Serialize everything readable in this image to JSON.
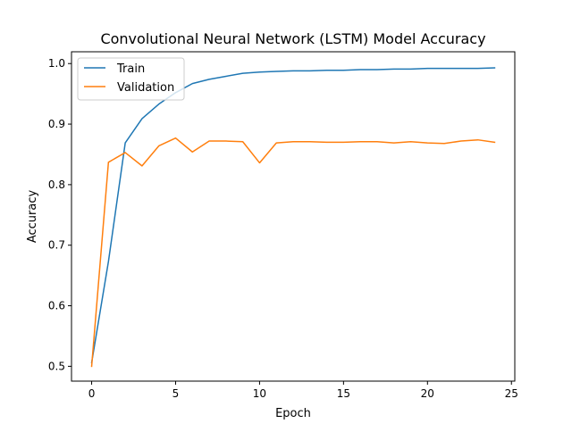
{
  "chart_data": {
    "type": "line",
    "title": "Convolutional Neural Network (LSTM) Model Accuracy",
    "xlabel": "Epoch",
    "ylabel": "Accuracy",
    "xlim": [
      -1.2,
      25.2
    ],
    "ylim": [
      0.4755,
      1.0195
    ],
    "xticks": [
      0,
      5,
      10,
      15,
      20,
      25
    ],
    "yticks": [
      0.5,
      0.6,
      0.7,
      0.8,
      0.9,
      1.0
    ],
    "xtick_labels": [
      "0",
      "5",
      "10",
      "15",
      "20",
      "25"
    ],
    "ytick_labels": [
      "0.5",
      "0.6",
      "0.7",
      "0.8",
      "0.9",
      "1.0"
    ],
    "grid": false,
    "legend_position": "top-left",
    "x": [
      0,
      1,
      2,
      3,
      4,
      5,
      6,
      7,
      8,
      9,
      10,
      11,
      12,
      13,
      14,
      15,
      16,
      17,
      18,
      19,
      20,
      21,
      22,
      23,
      24
    ],
    "series": [
      {
        "name": "Train",
        "color": "#1f77b4",
        "values": [
          0.506,
          0.673,
          0.869,
          0.909,
          0.933,
          0.952,
          0.967,
          0.974,
          0.979,
          0.984,
          0.986,
          0.987,
          0.988,
          0.988,
          0.989,
          0.989,
          0.99,
          0.99,
          0.991,
          0.991,
          0.992,
          0.992,
          0.992,
          0.992,
          0.993
        ]
      },
      {
        "name": "Validation",
        "color": "#ff7f0e",
        "values": [
          0.5,
          0.837,
          0.853,
          0.831,
          0.864,
          0.877,
          0.854,
          0.872,
          0.872,
          0.871,
          0.836,
          0.869,
          0.871,
          0.871,
          0.87,
          0.87,
          0.871,
          0.871,
          0.869,
          0.871,
          0.869,
          0.868,
          0.872,
          0.874,
          0.87
        ]
      }
    ]
  }
}
